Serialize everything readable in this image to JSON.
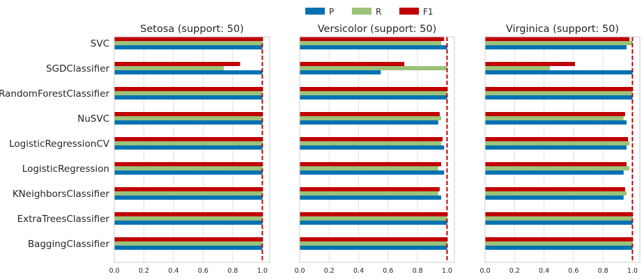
{
  "chart_data": [
    {
      "type": "bar",
      "orientation": "horizontal",
      "title": "Setosa (support: 50)",
      "categories": [
        "SVC",
        "SGDClassifier",
        "RandomForestClassifier",
        "NuSVC",
        "LogisticRegressionCV",
        "LogisticRegression",
        "KNeighborsClassifier",
        "ExtraTreesClassifier",
        "BaggingClassifier"
      ],
      "series": [
        {
          "name": "P",
          "values": [
            1.0,
            1.0,
            1.0,
            1.0,
            1.0,
            1.0,
            1.0,
            1.0,
            1.0
          ]
        },
        {
          "name": "R",
          "values": [
            1.0,
            0.74,
            1.0,
            1.0,
            1.0,
            1.0,
            1.0,
            1.0,
            1.0
          ]
        },
        {
          "name": "F1",
          "values": [
            1.0,
            0.85,
            1.0,
            1.0,
            1.0,
            1.0,
            1.0,
            1.0,
            1.0
          ]
        }
      ],
      "xlim": [
        0,
        1.05
      ],
      "xticks": [
        "0.0",
        "0.2",
        "0.4",
        "0.6",
        "0.8",
        "1.0"
      ],
      "reference_line": 1.0,
      "grid": true
    },
    {
      "type": "bar",
      "orientation": "horizontal",
      "title": "Versicolor (support: 50)",
      "categories": [
        "SVC",
        "SGDClassifier",
        "RandomForestClassifier",
        "NuSVC",
        "LogisticRegressionCV",
        "LogisticRegression",
        "KNeighborsClassifier",
        "ExtraTreesClassifier",
        "BaggingClassifier"
      ],
      "series": [
        {
          "name": "P",
          "values": [
            1.0,
            0.55,
            1.0,
            0.94,
            0.98,
            0.98,
            0.96,
            1.0,
            1.0
          ]
        },
        {
          "name": "R",
          "values": [
            0.96,
            1.0,
            1.0,
            0.96,
            0.96,
            0.94,
            0.94,
            1.0,
            1.0
          ]
        },
        {
          "name": "F1",
          "values": [
            0.98,
            0.71,
            1.0,
            0.95,
            0.97,
            0.96,
            0.95,
            1.0,
            1.0
          ]
        }
      ],
      "xlim": [
        0,
        1.05
      ],
      "xticks": [
        "0.0",
        "0.2",
        "0.4",
        "0.6",
        "0.8",
        "1.0"
      ],
      "reference_line": 1.0,
      "grid": true
    },
    {
      "type": "bar",
      "orientation": "horizontal",
      "title": "Virginica (support: 50)",
      "categories": [
        "SVC",
        "SGDClassifier",
        "RandomForestClassifier",
        "NuSVC",
        "LogisticRegressionCV",
        "LogisticRegression",
        "KNeighborsClassifier",
        "ExtraTreesClassifier",
        "BaggingClassifier"
      ],
      "series": [
        {
          "name": "P",
          "values": [
            0.96,
            1.0,
            1.0,
            0.96,
            0.96,
            0.94,
            0.94,
            1.0,
            1.0
          ]
        },
        {
          "name": "R",
          "values": [
            1.0,
            0.44,
            1.0,
            0.94,
            0.98,
            0.98,
            0.96,
            1.0,
            1.0
          ]
        },
        {
          "name": "F1",
          "values": [
            0.98,
            0.61,
            1.0,
            0.95,
            0.97,
            0.96,
            0.95,
            1.0,
            1.0
          ]
        }
      ],
      "xlim": [
        0,
        1.05
      ],
      "xticks": [
        "0.0",
        "0.2",
        "0.4",
        "0.6",
        "0.8",
        "1.0"
      ],
      "reference_line": 1.0,
      "grid": true
    }
  ],
  "legend": {
    "placement": "top-center",
    "items": [
      {
        "label": "P",
        "color": "#0072b2"
      },
      {
        "label": "R",
        "color": "#9bc27a"
      },
      {
        "label": "F1",
        "color": "#c00000"
      }
    ]
  },
  "colors": {
    "P": "#0072b2",
    "R": "#9bc27a",
    "F1": "#c00000",
    "reference_line": "#c00000",
    "grid": "#e0e0e0",
    "axis_edge": "#cccccc",
    "text": "#262626"
  }
}
